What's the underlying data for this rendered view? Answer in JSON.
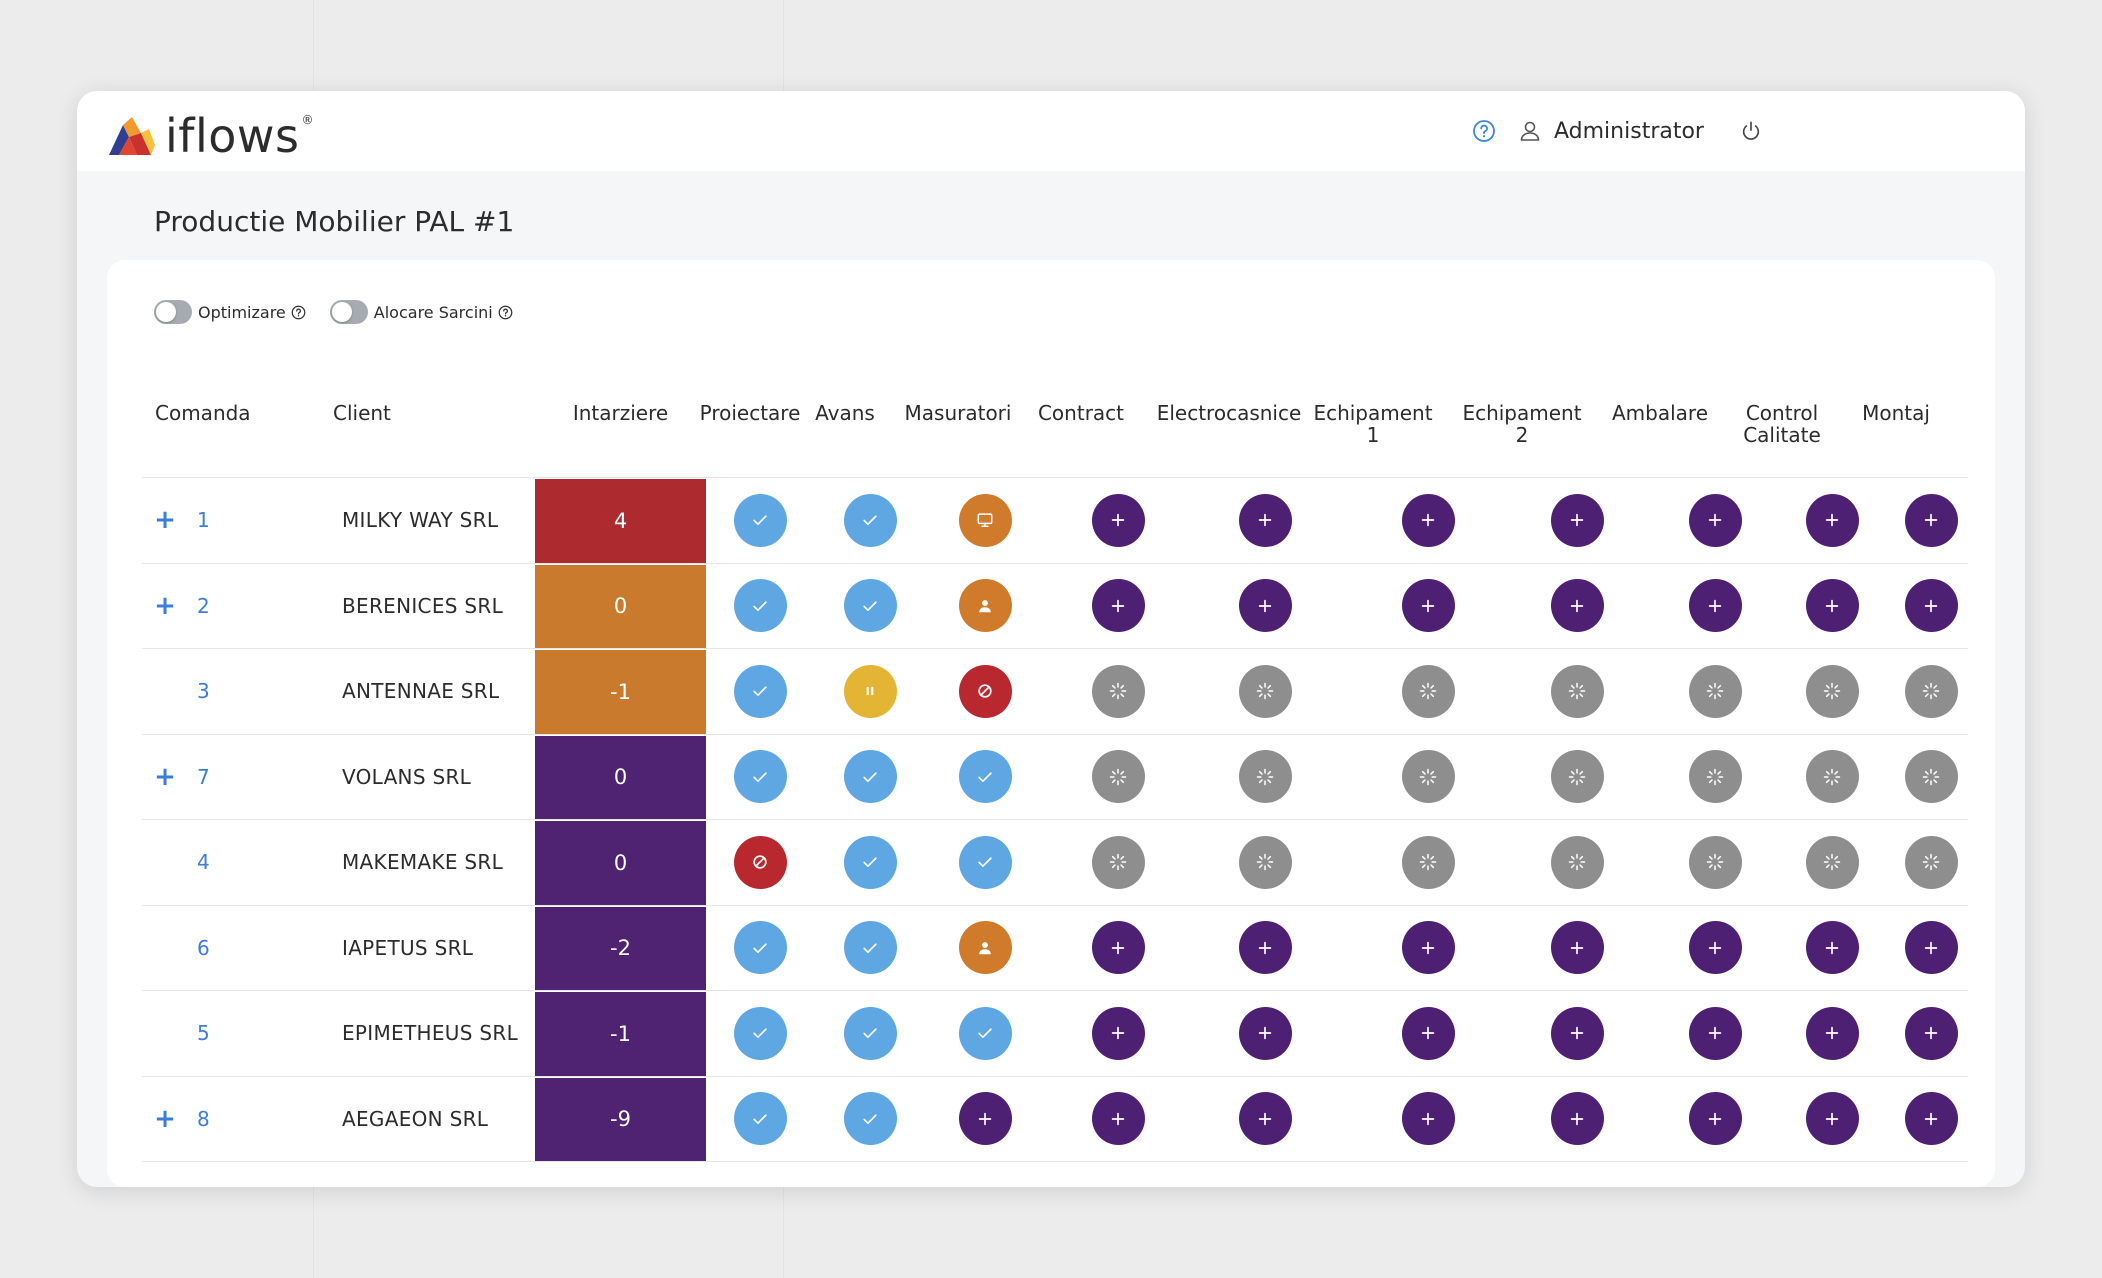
{
  "app": {
    "logo_text": "iflows",
    "logo_reg": "®"
  },
  "header": {
    "user_name": "Administrator"
  },
  "page": {
    "title": "Productie Mobilier PAL #1"
  },
  "toggles": [
    {
      "label": "Optimizare",
      "on": false
    },
    {
      "label": "Alocare Sarcini",
      "on": false
    }
  ],
  "table": {
    "columns": {
      "comanda": "Comanda",
      "client": "Client",
      "intarziere": "Intarziere",
      "proiectare": "Proiectare",
      "avans": "Avans",
      "masuratori": "Masuratori",
      "contract": "Contract",
      "electrocasnice": "Electrocasnice",
      "echipament1": "Echipament\n1",
      "echipament2": "Echipament\n2",
      "ambalare": "Ambalare",
      "control_calitate": "Control\nCalitate",
      "montaj": "Montaj"
    },
    "delay_colors": {
      "red": "#ad2a2f",
      "orange": "#c97a2d",
      "purple": "#4f2372"
    },
    "status_colors": {
      "check": "#5ea7e3",
      "plus": "#4d2073",
      "wait": "#8e8e8e",
      "pause": "#e4b534",
      "stop": "#b8282e",
      "screen": "#d07b2c",
      "person": "#d07b2c"
    },
    "rows": [
      {
        "expand": "+",
        "order": "1",
        "client": "MILKY WAY SRL",
        "delay": "4",
        "delay_color": "red",
        "statuses": [
          "check",
          "check",
          "screen",
          "plus",
          "plus",
          "plus",
          "plus",
          "plus",
          "plus",
          "plus"
        ]
      },
      {
        "expand": "+",
        "order": "2",
        "client": "BERENICES SRL",
        "delay": "0",
        "delay_color": "orange",
        "statuses": [
          "check",
          "check",
          "person",
          "plus",
          "plus",
          "plus",
          "plus",
          "plus",
          "plus",
          "plus"
        ]
      },
      {
        "expand": "",
        "order": "3",
        "client": "ANTENNAE SRL",
        "delay": "-1",
        "delay_color": "orange",
        "statuses": [
          "check",
          "pause",
          "stop",
          "wait",
          "wait",
          "wait",
          "wait",
          "wait",
          "wait",
          "wait"
        ]
      },
      {
        "expand": "+",
        "order": "7",
        "client": "VOLANS SRL",
        "delay": "0",
        "delay_color": "purple",
        "statuses": [
          "check",
          "check",
          "check",
          "wait",
          "wait",
          "wait",
          "wait",
          "wait",
          "wait",
          "wait"
        ]
      },
      {
        "expand": "",
        "order": "4",
        "client": "MAKEMAKE SRL",
        "delay": "0",
        "delay_color": "purple",
        "statuses": [
          "stop",
          "check",
          "check",
          "wait",
          "wait",
          "wait",
          "wait",
          "wait",
          "wait",
          "wait"
        ]
      },
      {
        "expand": "",
        "order": "6",
        "client": "IAPETUS SRL",
        "delay": "-2",
        "delay_color": "purple",
        "statuses": [
          "check",
          "check",
          "person",
          "plus",
          "plus",
          "plus",
          "plus",
          "plus",
          "plus",
          "plus"
        ]
      },
      {
        "expand": "",
        "order": "5",
        "client": "EPIMETHEUS SRL",
        "delay": "-1",
        "delay_color": "purple",
        "statuses": [
          "check",
          "check",
          "check",
          "plus",
          "plus",
          "plus",
          "plus",
          "plus",
          "plus",
          "plus"
        ]
      },
      {
        "expand": "+",
        "order": "8",
        "client": "AEGAEON SRL",
        "delay": "-9",
        "delay_color": "purple",
        "statuses": [
          "check",
          "check",
          "plus",
          "plus",
          "plus",
          "plus",
          "plus",
          "plus",
          "plus",
          "plus"
        ]
      }
    ]
  }
}
